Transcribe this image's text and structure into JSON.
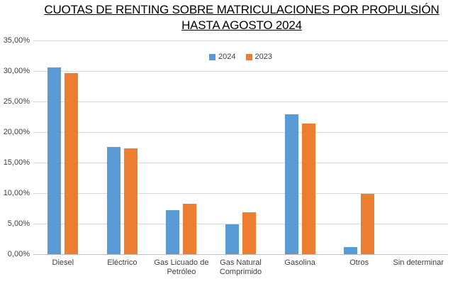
{
  "title": {
    "line1": "CUOTAS DE RENTING SOBRE MATRICULACIONES POR PROPULSIÓN",
    "line2": "HASTA AGOSTO 2024"
  },
  "legend": {
    "items": [
      {
        "label": "2024",
        "color": "#5B9BD5"
      },
      {
        "label": "2023",
        "color": "#ED7D31"
      }
    ]
  },
  "colors": {
    "bar_2024": "#5B9BD5",
    "bar_2023": "#ED7D31",
    "gridline": "#D9D9D9",
    "axis_line": "#BFBFBF",
    "axis_text": "#404040",
    "title_text": "#000000"
  },
  "chart_data": {
    "type": "bar",
    "title": "CUOTAS DE RENTING SOBRE MATRICULACIONES POR PROPULSIÓN HASTA AGOSTO 2024",
    "categories": [
      "Diesel",
      "Eléctrico",
      "Gas Licuado de\nPetróleo",
      "Gas Natural\nComprimido",
      "Gasolina",
      "Otros",
      "Sin determinar"
    ],
    "series": [
      {
        "name": "2024",
        "color": "#5B9BD5",
        "values": [
          30.6,
          17.6,
          7.2,
          4.9,
          22.9,
          1.2,
          0
        ]
      },
      {
        "name": "2023",
        "color": "#ED7D31",
        "values": [
          29.7,
          17.3,
          8.3,
          6.9,
          21.4,
          9.9,
          0
        ]
      }
    ],
    "xlabel": "",
    "ylabel": "",
    "ylim": [
      0,
      35
    ],
    "ytick_step": 5,
    "yticks": [
      "35,00%",
      "30,00%",
      "25,00%",
      "20,00%",
      "15,00%",
      "10,00%",
      "5,00%",
      "0,00%"
    ],
    "grid": true,
    "legend_position": "top-center"
  }
}
